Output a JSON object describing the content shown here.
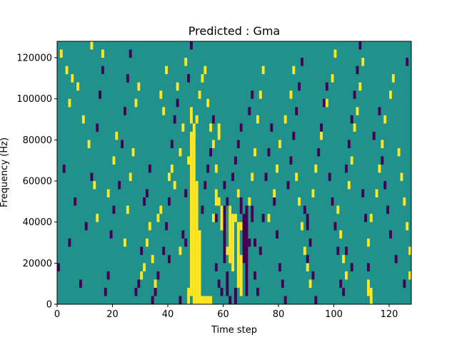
{
  "colors": {
    "background": "#21918c",
    "low": "#440154",
    "high": "#fde725",
    "axes": "#000000"
  },
  "chart_data": {
    "type": "heatmap",
    "title": "Predicted : Gma",
    "xlabel": "Time step",
    "ylabel": "Frequency (Hz)",
    "xlim": [
      0,
      128
    ],
    "ylim": [
      0,
      128000
    ],
    "xticks": [
      0,
      20,
      40,
      60,
      80,
      100,
      120
    ],
    "yticks": [
      0,
      20000,
      40000,
      60000,
      80000,
      100000,
      120000
    ],
    "colormap": "viridis",
    "grid": false,
    "legend": "none",
    "bin_width_hz": 4000,
    "cells_high": [
      [
        1,
        120
      ],
      [
        3,
        112
      ],
      [
        4,
        96
      ],
      [
        5,
        108
      ],
      [
        7,
        104
      ],
      [
        9,
        88
      ],
      [
        11,
        76
      ],
      [
        12,
        124
      ],
      [
        13,
        56
      ],
      [
        14,
        40
      ],
      [
        16,
        120
      ],
      [
        18,
        52
      ],
      [
        20,
        68
      ],
      [
        21,
        80
      ],
      [
        24,
        28
      ],
      [
        25,
        44
      ],
      [
        26,
        60
      ],
      [
        27,
        72
      ],
      [
        28,
        96
      ],
      [
        29,
        104
      ],
      [
        30,
        12
      ],
      [
        31,
        16
      ],
      [
        32,
        28
      ],
      [
        33,
        36
      ],
      [
        34,
        20
      ],
      [
        35,
        8
      ],
      [
        36,
        40
      ],
      [
        37,
        44
      ],
      [
        37,
        100
      ],
      [
        38,
        92
      ],
      [
        39,
        112
      ],
      [
        40,
        60
      ],
      [
        41,
        64
      ],
      [
        42,
        56
      ],
      [
        43,
        104
      ],
      [
        44,
        24
      ],
      [
        44,
        72
      ],
      [
        45,
        84
      ],
      [
        46,
        116
      ],
      [
        47,
        68
      ],
      [
        48,
        76
      ],
      [
        49,
        80
      ],
      [
        50,
        88
      ],
      [
        51,
        100
      ],
      [
        52,
        108
      ],
      [
        53,
        112
      ],
      [
        54,
        96
      ],
      [
        55,
        84
      ],
      [
        56,
        76
      ],
      [
        57,
        64
      ],
      [
        58,
        48
      ],
      [
        59,
        36
      ],
      [
        60,
        32
      ],
      [
        61,
        24
      ],
      [
        62,
        20
      ],
      [
        63,
        28
      ],
      [
        64,
        40
      ],
      [
        65,
        52
      ],
      [
        66,
        36
      ],
      [
        67,
        20
      ],
      [
        68,
        12
      ],
      [
        69,
        48
      ],
      [
        70,
        60
      ],
      [
        71,
        72
      ],
      [
        72,
        88
      ],
      [
        73,
        100
      ],
      [
        74,
        112
      ],
      [
        76,
        40
      ],
      [
        78,
        52
      ],
      [
        79,
        64
      ],
      [
        80,
        76
      ],
      [
        82,
        88
      ],
      [
        84,
        100
      ],
      [
        85,
        112
      ],
      [
        86,
        60
      ],
      [
        87,
        48
      ],
      [
        88,
        36
      ],
      [
        89,
        24
      ],
      [
        90,
        16
      ],
      [
        91,
        8
      ],
      [
        92,
        52
      ],
      [
        93,
        64
      ],
      [
        95,
        80
      ],
      [
        97,
        96
      ],
      [
        99,
        108
      ],
      [
        100,
        120
      ],
      [
        101,
        44
      ],
      [
        102,
        32
      ],
      [
        103,
        20
      ],
      [
        104,
        12
      ],
      [
        105,
        56
      ],
      [
        106,
        68
      ],
      [
        107,
        84
      ],
      [
        108,
        92
      ],
      [
        109,
        104
      ],
      [
        110,
        116
      ],
      [
        112,
        28
      ],
      [
        113,
        40
      ],
      [
        115,
        52
      ],
      [
        116,
        64
      ],
      [
        117,
        76
      ],
      [
        118,
        88
      ],
      [
        120,
        100
      ],
      [
        121,
        108
      ],
      [
        123,
        72
      ],
      [
        124,
        60
      ],
      [
        125,
        48
      ],
      [
        126,
        36
      ],
      [
        127,
        24
      ],
      [
        127,
        12
      ]
    ],
    "cells_low": [
      [
        0,
        16
      ],
      [
        2,
        64
      ],
      [
        4,
        28
      ],
      [
        6,
        48
      ],
      [
        8,
        8
      ],
      [
        10,
        36
      ],
      [
        12,
        60
      ],
      [
        14,
        84
      ],
      [
        15,
        100
      ],
      [
        16,
        112
      ],
      [
        17,
        4
      ],
      [
        18,
        12
      ],
      [
        19,
        32
      ],
      [
        20,
        44
      ],
      [
        22,
        56
      ],
      [
        23,
        76
      ],
      [
        24,
        92
      ],
      [
        25,
        108
      ],
      [
        26,
        120
      ],
      [
        28,
        4
      ],
      [
        29,
        8
      ],
      [
        30,
        24
      ],
      [
        31,
        48
      ],
      [
        32,
        52
      ],
      [
        33,
        64
      ],
      [
        34,
        0
      ],
      [
        35,
        4
      ],
      [
        36,
        12
      ],
      [
        38,
        24
      ],
      [
        39,
        36
      ],
      [
        40,
        48
      ],
      [
        41,
        76
      ],
      [
        42,
        88
      ],
      [
        43,
        96
      ],
      [
        44,
        0
      ],
      [
        45,
        32
      ],
      [
        46,
        52
      ],
      [
        47,
        108
      ],
      [
        48,
        124
      ],
      [
        52,
        44
      ],
      [
        53,
        56
      ],
      [
        54,
        64
      ],
      [
        55,
        72
      ],
      [
        56,
        88
      ],
      [
        57,
        16
      ],
      [
        58,
        8
      ],
      [
        59,
        4
      ],
      [
        60,
        56
      ],
      [
        61,
        48
      ],
      [
        62,
        44
      ],
      [
        63,
        60
      ],
      [
        64,
        68
      ],
      [
        65,
        76
      ],
      [
        66,
        84
      ],
      [
        67,
        28
      ],
      [
        68,
        36
      ],
      [
        69,
        92
      ],
      [
        70,
        100
      ],
      [
        71,
        12
      ],
      [
        72,
        4
      ],
      [
        73,
        24
      ],
      [
        74,
        40
      ],
      [
        75,
        60
      ],
      [
        76,
        72
      ],
      [
        77,
        84
      ],
      [
        78,
        48
      ],
      [
        79,
        32
      ],
      [
        80,
        16
      ],
      [
        81,
        8
      ],
      [
        82,
        0
      ],
      [
        83,
        56
      ],
      [
        84,
        68
      ],
      [
        85,
        80
      ],
      [
        86,
        92
      ],
      [
        87,
        104
      ],
      [
        88,
        116
      ],
      [
        89,
        44
      ],
      [
        90,
        20
      ],
      [
        91,
        28
      ],
      [
        92,
        12
      ],
      [
        93,
        0
      ],
      [
        94,
        72
      ],
      [
        95,
        84
      ],
      [
        96,
        96
      ],
      [
        97,
        104
      ],
      [
        98,
        60
      ],
      [
        99,
        48
      ],
      [
        100,
        36
      ],
      [
        101,
        24
      ],
      [
        102,
        8
      ],
      [
        103,
        4
      ],
      [
        104,
        64
      ],
      [
        105,
        76
      ],
      [
        106,
        88
      ],
      [
        107,
        100
      ],
      [
        108,
        112
      ],
      [
        109,
        124
      ],
      [
        110,
        52
      ],
      [
        111,
        40
      ],
      [
        112,
        16
      ],
      [
        113,
        4
      ],
      [
        114,
        80
      ],
      [
        116,
        92
      ],
      [
        117,
        68
      ],
      [
        118,
        56
      ],
      [
        119,
        44
      ],
      [
        120,
        32
      ],
      [
        122,
        20
      ],
      [
        125,
        8
      ],
      [
        126,
        116
      ]
    ],
    "bands_high": [
      [
        47,
        0,
        8000
      ],
      [
        48,
        4000,
        84000
      ],
      [
        48,
        88000,
        96000
      ],
      [
        49,
        0,
        88000
      ],
      [
        50,
        0,
        60000
      ],
      [
        51,
        0,
        36000
      ],
      [
        52,
        0,
        4000
      ],
      [
        53,
        0,
        4000
      ],
      [
        54,
        0,
        4000
      ],
      [
        55,
        0,
        4000
      ],
      [
        56,
        40000,
        44000
      ],
      [
        57,
        48000,
        56000
      ],
      [
        58,
        80000,
        88000
      ],
      [
        59,
        36000,
        48000
      ],
      [
        62,
        24000,
        48000
      ],
      [
        63,
        16000,
        44000
      ],
      [
        65,
        8000,
        40000
      ],
      [
        66,
        4000,
        24000
      ],
      [
        112,
        4000,
        12000
      ],
      [
        113,
        0,
        8000
      ]
    ],
    "bands_low": [
      [
        40,
        20000,
        24000
      ],
      [
        46,
        28000,
        32000
      ],
      [
        57,
        40000,
        44000
      ],
      [
        60,
        20000,
        48000
      ],
      [
        61,
        4000,
        16000
      ],
      [
        62,
        0,
        4000
      ],
      [
        64,
        0,
        8000
      ],
      [
        66,
        44000,
        52000
      ],
      [
        67,
        20000,
        44000
      ],
      [
        68,
        4000,
        48000
      ],
      [
        69,
        28000,
        32000
      ],
      [
        70,
        40000,
        48000
      ],
      [
        71,
        28000,
        32000
      ],
      [
        90,
        36000,
        44000
      ],
      [
        104,
        24000,
        28000
      ],
      [
        106,
        16000,
        20000
      ]
    ]
  }
}
